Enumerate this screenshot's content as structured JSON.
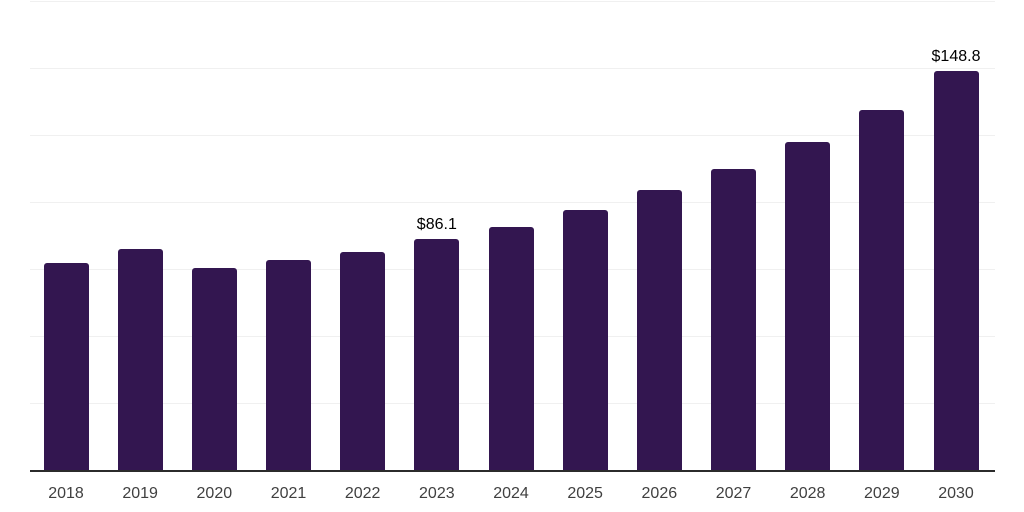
{
  "chart_data": {
    "type": "bar",
    "title": "",
    "xlabel": "",
    "ylabel": "",
    "categories": [
      "2018",
      "2019",
      "2020",
      "2021",
      "2022",
      "2023",
      "2024",
      "2025",
      "2026",
      "2027",
      "2028",
      "2029",
      "2030"
    ],
    "values": [
      77.4,
      82.4,
      75.5,
      78.3,
      81.5,
      86.1,
      90.8,
      97.1,
      104.5,
      112.3,
      122.4,
      134.3,
      148.8
    ],
    "data_labels": {
      "2023": "$86.1",
      "2030": "$148.8"
    },
    "ylim": [
      0,
      175
    ],
    "gridline_step": 25,
    "grid": "horizontal-only",
    "legend": "none",
    "y_tick_labels_shown": false,
    "colors": {
      "bar": "#331650",
      "gridline": "#f0f0f0",
      "axis_line": "#2b2b2b",
      "tick_label": "#404040",
      "data_label": "#000000",
      "background": "#ffffff"
    }
  }
}
